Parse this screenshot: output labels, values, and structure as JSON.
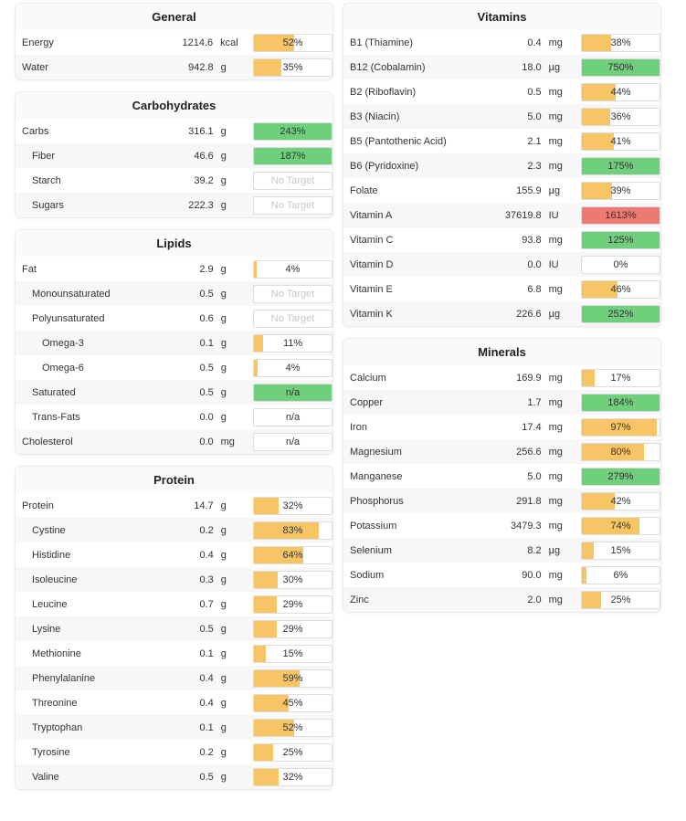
{
  "colors": {
    "low": "#f8c566",
    "good": "#6fcf7c",
    "high": "#ed7a72"
  },
  "panels": [
    {
      "id": "general",
      "title": "General",
      "column": "left",
      "rows": [
        {
          "name": "Energy",
          "indent": 0,
          "amount": "1214.6",
          "unit": "kcal",
          "label": "52%",
          "fill": 0.52,
          "status": "low"
        },
        {
          "name": "Water",
          "indent": 0,
          "amount": "942.8",
          "unit": "g",
          "label": "35%",
          "fill": 0.35,
          "status": "low"
        }
      ]
    },
    {
      "id": "carbohydrates",
      "title": "Carbohydrates",
      "column": "left",
      "rows": [
        {
          "name": "Carbs",
          "indent": 0,
          "amount": "316.1",
          "unit": "g",
          "label": "243%",
          "fill": 1,
          "status": "good"
        },
        {
          "name": "Fiber",
          "indent": 1,
          "amount": "46.6",
          "unit": "g",
          "label": "187%",
          "fill": 1,
          "status": "good"
        },
        {
          "name": "Starch",
          "indent": 1,
          "amount": "39.2",
          "unit": "g",
          "label": "No Target",
          "fill": 0,
          "status": "notarget"
        },
        {
          "name": "Sugars",
          "indent": 1,
          "amount": "222.3",
          "unit": "g",
          "label": "No Target",
          "fill": 0,
          "status": "notarget"
        }
      ]
    },
    {
      "id": "lipids",
      "title": "Lipids",
      "column": "left",
      "rows": [
        {
          "name": "Fat",
          "indent": 0,
          "amount": "2.9",
          "unit": "g",
          "label": "4%",
          "fill": 0.04,
          "status": "low"
        },
        {
          "name": "Monounsaturated",
          "indent": 1,
          "amount": "0.5",
          "unit": "g",
          "label": "No Target",
          "fill": 0,
          "status": "notarget"
        },
        {
          "name": "Polyunsaturated",
          "indent": 1,
          "amount": "0.6",
          "unit": "g",
          "label": "No Target",
          "fill": 0,
          "status": "notarget"
        },
        {
          "name": "Omega-3",
          "indent": 2,
          "amount": "0.1",
          "unit": "g",
          "label": "11%",
          "fill": 0.11,
          "status": "low"
        },
        {
          "name": "Omega-6",
          "indent": 2,
          "amount": "0.5",
          "unit": "g",
          "label": "4%",
          "fill": 0.04,
          "status": "low"
        },
        {
          "name": "Saturated",
          "indent": 1,
          "amount": "0.5",
          "unit": "g",
          "label": "n/a",
          "fill": 1,
          "status": "good"
        },
        {
          "name": "Trans-Fats",
          "indent": 1,
          "amount": "0.0",
          "unit": "g",
          "label": "n/a",
          "fill": 0,
          "status": "none"
        },
        {
          "name": "Cholesterol",
          "indent": 0,
          "amount": "0.0",
          "unit": "mg",
          "label": "n/a",
          "fill": 0,
          "status": "none"
        }
      ]
    },
    {
      "id": "protein",
      "title": "Protein",
      "column": "left",
      "rows": [
        {
          "name": "Protein",
          "indent": 0,
          "amount": "14.7",
          "unit": "g",
          "label": "32%",
          "fill": 0.32,
          "status": "low"
        },
        {
          "name": "Cystine",
          "indent": 1,
          "amount": "0.2",
          "unit": "g",
          "label": "83%",
          "fill": 0.83,
          "status": "low"
        },
        {
          "name": "Histidine",
          "indent": 1,
          "amount": "0.4",
          "unit": "g",
          "label": "64%",
          "fill": 0.64,
          "status": "low"
        },
        {
          "name": "Isoleucine",
          "indent": 1,
          "amount": "0.3",
          "unit": "g",
          "label": "30%",
          "fill": 0.3,
          "status": "low"
        },
        {
          "name": "Leucine",
          "indent": 1,
          "amount": "0.7",
          "unit": "g",
          "label": "29%",
          "fill": 0.29,
          "status": "low"
        },
        {
          "name": "Lysine",
          "indent": 1,
          "amount": "0.5",
          "unit": "g",
          "label": "29%",
          "fill": 0.29,
          "status": "low"
        },
        {
          "name": "Methionine",
          "indent": 1,
          "amount": "0.1",
          "unit": "g",
          "label": "15%",
          "fill": 0.15,
          "status": "low"
        },
        {
          "name": "Phenylalanine",
          "indent": 1,
          "amount": "0.4",
          "unit": "g",
          "label": "59%",
          "fill": 0.59,
          "status": "low"
        },
        {
          "name": "Threonine",
          "indent": 1,
          "amount": "0.4",
          "unit": "g",
          "label": "45%",
          "fill": 0.45,
          "status": "low"
        },
        {
          "name": "Tryptophan",
          "indent": 1,
          "amount": "0.1",
          "unit": "g",
          "label": "52%",
          "fill": 0.52,
          "status": "low"
        },
        {
          "name": "Tyrosine",
          "indent": 1,
          "amount": "0.2",
          "unit": "g",
          "label": "25%",
          "fill": 0.25,
          "status": "low"
        },
        {
          "name": "Valine",
          "indent": 1,
          "amount": "0.5",
          "unit": "g",
          "label": "32%",
          "fill": 0.32,
          "status": "low"
        }
      ]
    },
    {
      "id": "vitamins",
      "title": "Vitamins",
      "column": "right",
      "rows": [
        {
          "name": "B1 (Thiamine)",
          "indent": 0,
          "amount": "0.4",
          "unit": "mg",
          "label": "38%",
          "fill": 0.38,
          "status": "low"
        },
        {
          "name": "B12 (Cobalamin)",
          "indent": 0,
          "amount": "18.0",
          "unit": "µg",
          "label": "750%",
          "fill": 1,
          "status": "good"
        },
        {
          "name": "B2 (Riboflavin)",
          "indent": 0,
          "amount": "0.5",
          "unit": "mg",
          "label": "44%",
          "fill": 0.44,
          "status": "low"
        },
        {
          "name": "B3 (Niacin)",
          "indent": 0,
          "amount": "5.0",
          "unit": "mg",
          "label": "36%",
          "fill": 0.36,
          "status": "low"
        },
        {
          "name": "B5 (Pantothenic Acid)",
          "indent": 0,
          "amount": "2.1",
          "unit": "mg",
          "label": "41%",
          "fill": 0.41,
          "status": "low"
        },
        {
          "name": "B6 (Pyridoxine)",
          "indent": 0,
          "amount": "2.3",
          "unit": "mg",
          "label": "175%",
          "fill": 1,
          "status": "good"
        },
        {
          "name": "Folate",
          "indent": 0,
          "amount": "155.9",
          "unit": "µg",
          "label": "39%",
          "fill": 0.39,
          "status": "low"
        },
        {
          "name": "Vitamin A",
          "indent": 0,
          "amount": "37619.8",
          "unit": "IU",
          "label": "1613%",
          "fill": 1,
          "status": "high"
        },
        {
          "name": "Vitamin C",
          "indent": 0,
          "amount": "93.8",
          "unit": "mg",
          "label": "125%",
          "fill": 1,
          "status": "good"
        },
        {
          "name": "Vitamin D",
          "indent": 0,
          "amount": "0.0",
          "unit": "IU",
          "label": "0%",
          "fill": 0,
          "status": "low"
        },
        {
          "name": "Vitamin E",
          "indent": 0,
          "amount": "6.8",
          "unit": "mg",
          "label": "46%",
          "fill": 0.46,
          "status": "low"
        },
        {
          "name": "Vitamin K",
          "indent": 0,
          "amount": "226.6",
          "unit": "µg",
          "label": "252%",
          "fill": 1,
          "status": "good"
        }
      ]
    },
    {
      "id": "minerals",
      "title": "Minerals",
      "column": "right",
      "rows": [
        {
          "name": "Calcium",
          "indent": 0,
          "amount": "169.9",
          "unit": "mg",
          "label": "17%",
          "fill": 0.17,
          "status": "low"
        },
        {
          "name": "Copper",
          "indent": 0,
          "amount": "1.7",
          "unit": "mg",
          "label": "184%",
          "fill": 1,
          "status": "good"
        },
        {
          "name": "Iron",
          "indent": 0,
          "amount": "17.4",
          "unit": "mg",
          "label": "97%",
          "fill": 0.97,
          "status": "low"
        },
        {
          "name": "Magnesium",
          "indent": 0,
          "amount": "256.6",
          "unit": "mg",
          "label": "80%",
          "fill": 0.8,
          "status": "low"
        },
        {
          "name": "Manganese",
          "indent": 0,
          "amount": "5.0",
          "unit": "mg",
          "label": "279%",
          "fill": 1,
          "status": "good"
        },
        {
          "name": "Phosphorus",
          "indent": 0,
          "amount": "291.8",
          "unit": "mg",
          "label": "42%",
          "fill": 0.42,
          "status": "low"
        },
        {
          "name": "Potassium",
          "indent": 0,
          "amount": "3479.3",
          "unit": "mg",
          "label": "74%",
          "fill": 0.74,
          "status": "low"
        },
        {
          "name": "Selenium",
          "indent": 0,
          "amount": "8.2",
          "unit": "µg",
          "label": "15%",
          "fill": 0.15,
          "status": "low"
        },
        {
          "name": "Sodium",
          "indent": 0,
          "amount": "90.0",
          "unit": "mg",
          "label": "6%",
          "fill": 0.06,
          "status": "low"
        },
        {
          "name": "Zinc",
          "indent": 0,
          "amount": "2.0",
          "unit": "mg",
          "label": "25%",
          "fill": 0.25,
          "status": "low"
        }
      ]
    }
  ]
}
